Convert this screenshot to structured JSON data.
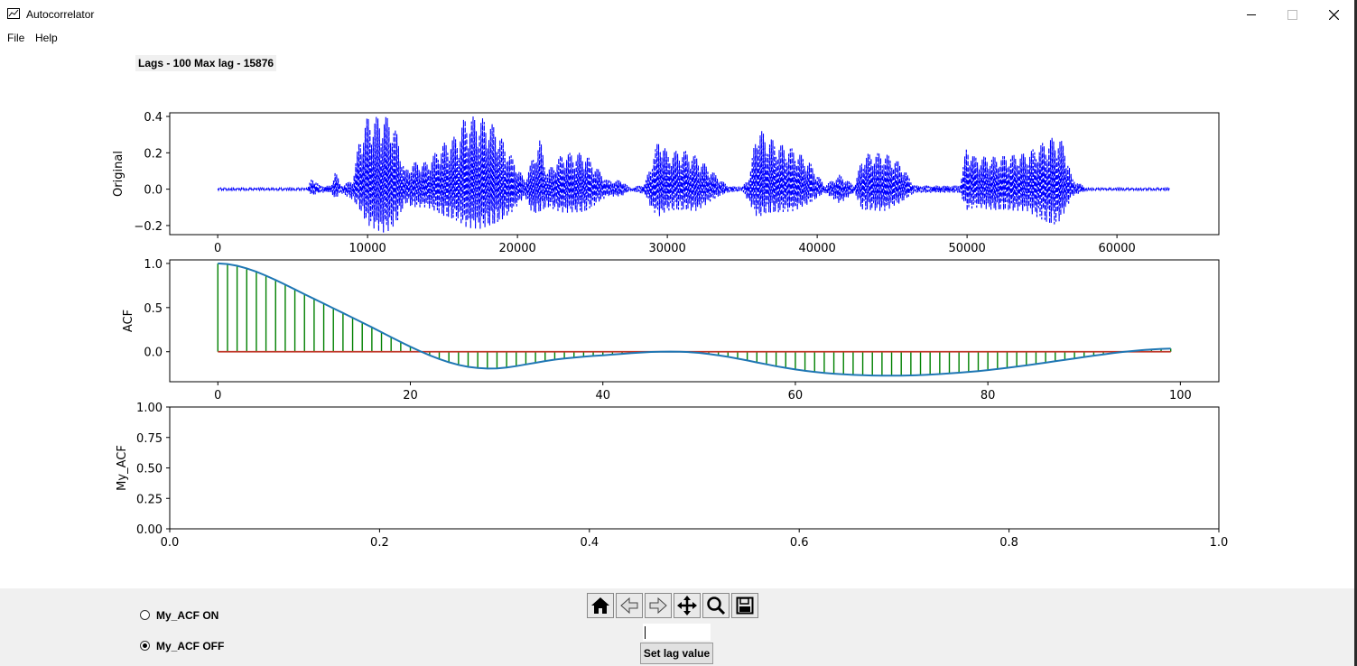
{
  "window": {
    "title": "Autocorrelator",
    "controls": [
      "minimize",
      "maximize",
      "close"
    ]
  },
  "menu": {
    "items": [
      "File",
      "Help"
    ]
  },
  "lags_label": "Lags - 100 Max lag - 15876",
  "chart_data": [
    {
      "type": "line",
      "name": "original",
      "ylabel": "Original",
      "xlim": [
        -3200,
        66800
      ],
      "ylim": [
        -0.25,
        0.42
      ],
      "xticks": [
        0,
        10000,
        20000,
        30000,
        40000,
        50000,
        60000
      ],
      "yticks": [
        -0.2,
        0.0,
        0.2,
        0.4
      ],
      "ytick_labels": [
        "−0.2",
        "0.0",
        "0.2",
        "0.4"
      ],
      "series": [
        {
          "values_x_range": [
            0,
            63500
          ],
          "color": "#0000ff",
          "style": "dashed"
        }
      ],
      "envelope": [
        [
          0,
          0.006,
          -0.006
        ],
        [
          6000,
          0.006,
          -0.006
        ],
        [
          6300,
          0.07,
          -0.04
        ],
        [
          6800,
          0.02,
          -0.02
        ],
        [
          7600,
          0.02,
          -0.02
        ],
        [
          7800,
          0.12,
          -0.06
        ],
        [
          8200,
          0.02,
          -0.02
        ],
        [
          9000,
          0.05,
          -0.06
        ],
        [
          9500,
          0.3,
          -0.12
        ],
        [
          10000,
          0.4,
          -0.2
        ],
        [
          11000,
          0.4,
          -0.24
        ],
        [
          11500,
          0.4,
          -0.23
        ],
        [
          12000,
          0.3,
          -0.18
        ],
        [
          12500,
          0.1,
          -0.08
        ],
        [
          13000,
          0.15,
          -0.1
        ],
        [
          14000,
          0.15,
          -0.1
        ],
        [
          15000,
          0.25,
          -0.15
        ],
        [
          16000,
          0.3,
          -0.18
        ],
        [
          16500,
          0.4,
          -0.21
        ],
        [
          17500,
          0.4,
          -0.22
        ],
        [
          18500,
          0.35,
          -0.2
        ],
        [
          19500,
          0.2,
          -0.14
        ],
        [
          20500,
          0.05,
          -0.04
        ],
        [
          21000,
          0.17,
          -0.14
        ],
        [
          21500,
          0.28,
          -0.13
        ],
        [
          22000,
          0.1,
          -0.1
        ],
        [
          23000,
          0.2,
          -0.13
        ],
        [
          24500,
          0.2,
          -0.13
        ],
        [
          25000,
          0.15,
          -0.1
        ],
        [
          26000,
          0.05,
          -0.04
        ],
        [
          27000,
          0.05,
          -0.04
        ],
        [
          27500,
          0.006,
          -0.006
        ],
        [
          28500,
          0.03,
          -0.03
        ],
        [
          29000,
          0.17,
          -0.12
        ],
        [
          29500,
          0.3,
          -0.15
        ],
        [
          30000,
          0.2,
          -0.12
        ],
        [
          31000,
          0.22,
          -0.12
        ],
        [
          32000,
          0.18,
          -0.12
        ],
        [
          33000,
          0.1,
          -0.06
        ],
        [
          34000,
          0.02,
          -0.02
        ],
        [
          35000,
          0.01,
          -0.01
        ],
        [
          35500,
          0.08,
          -0.08
        ],
        [
          36000,
          0.36,
          -0.16
        ],
        [
          36500,
          0.3,
          -0.14
        ],
        [
          37500,
          0.25,
          -0.13
        ],
        [
          38500,
          0.22,
          -0.12
        ],
        [
          39500,
          0.15,
          -0.08
        ],
        [
          40500,
          0.02,
          -0.02
        ],
        [
          41000,
          0.05,
          -0.05
        ],
        [
          41500,
          0.08,
          -0.08
        ],
        [
          42500,
          0.02,
          -0.02
        ],
        [
          43000,
          0.18,
          -0.12
        ],
        [
          43500,
          0.2,
          -0.12
        ],
        [
          44500,
          0.2,
          -0.12
        ],
        [
          45500,
          0.15,
          -0.08
        ],
        [
          46500,
          0.02,
          -0.02
        ],
        [
          47500,
          0.02,
          -0.02
        ],
        [
          49500,
          0.02,
          -0.02
        ],
        [
          50000,
          0.25,
          -0.12
        ],
        [
          50500,
          0.18,
          -0.1
        ],
        [
          52000,
          0.18,
          -0.12
        ],
        [
          54000,
          0.2,
          -0.12
        ],
        [
          55500,
          0.28,
          -0.2
        ],
        [
          56000,
          0.29,
          -0.2
        ],
        [
          56500,
          0.25,
          -0.13
        ],
        [
          57000,
          0.06,
          -0.04
        ],
        [
          58000,
          0.006,
          -0.006
        ],
        [
          63500,
          0.006,
          -0.006
        ]
      ],
      "envelope_format": [
        "x",
        "max",
        "min"
      ]
    },
    {
      "type": "stem",
      "name": "acf",
      "ylabel": "ACF",
      "xlim": [
        -5,
        104
      ],
      "ylim": [
        -0.34,
        1.04
      ],
      "xticks": [
        0,
        20,
        40,
        60,
        80,
        100
      ],
      "yticks": [
        0.0,
        0.5,
        1.0
      ],
      "ytick_labels": [
        "0.0",
        "0.5",
        "1.0"
      ],
      "stem_color": "#008000",
      "baseline_color": "#c0392b",
      "line_color": "#1f77b4",
      "values": [
        1.0,
        0.993,
        0.974,
        0.944,
        0.906,
        0.861,
        0.812,
        0.76,
        0.706,
        0.652,
        0.598,
        0.545,
        0.492,
        0.439,
        0.385,
        0.331,
        0.276,
        0.221,
        0.165,
        0.11,
        0.057,
        0.007,
        -0.04,
        -0.082,
        -0.119,
        -0.149,
        -0.171,
        -0.185,
        -0.191,
        -0.189,
        -0.179,
        -0.163,
        -0.144,
        -0.125,
        -0.106,
        -0.09,
        -0.077,
        -0.066,
        -0.057,
        -0.048,
        -0.04,
        -0.032,
        -0.024,
        -0.016,
        -0.009,
        -0.003,
        0.0,
        0.001,
        -0.001,
        -0.005,
        -0.013,
        -0.025,
        -0.04,
        -0.058,
        -0.078,
        -0.099,
        -0.121,
        -0.143,
        -0.164,
        -0.183,
        -0.201,
        -0.216,
        -0.229,
        -0.24,
        -0.249,
        -0.256,
        -0.262,
        -0.266,
        -0.269,
        -0.271,
        -0.271,
        -0.27,
        -0.268,
        -0.264,
        -0.259,
        -0.253,
        -0.246,
        -0.238,
        -0.229,
        -0.219,
        -0.208,
        -0.196,
        -0.183,
        -0.169,
        -0.155,
        -0.14,
        -0.124,
        -0.108,
        -0.092,
        -0.076,
        -0.06,
        -0.045,
        -0.03,
        -0.016,
        -0.003,
        0.008,
        0.018,
        0.026,
        0.032,
        0.036
      ]
    },
    {
      "type": "line",
      "name": "my_acf",
      "ylabel": "My_ACF",
      "xlim": [
        0,
        1
      ],
      "ylim": [
        0,
        1
      ],
      "xticks": [
        0.0,
        0.2,
        0.4,
        0.6,
        0.8,
        1.0
      ],
      "yticks": [
        0.0,
        0.25,
        0.5,
        0.75,
        1.0
      ],
      "xtick_labels": [
        "0.0",
        "0.2",
        "0.4",
        "0.6",
        "0.8",
        "1.0"
      ],
      "ytick_labels": [
        "0.00",
        "0.25",
        "0.50",
        "0.75",
        "1.00"
      ],
      "series": []
    }
  ],
  "controls": {
    "radio_on": {
      "label": "My_ACF ON",
      "checked": false
    },
    "radio_off": {
      "label": "My_ACF OFF",
      "checked": true
    },
    "toolbar": [
      "home-icon",
      "back-icon",
      "forward-icon",
      "pan-icon",
      "zoom-icon",
      "save-icon"
    ],
    "lag_input_value": "",
    "set_lag_button": "Set lag value"
  }
}
